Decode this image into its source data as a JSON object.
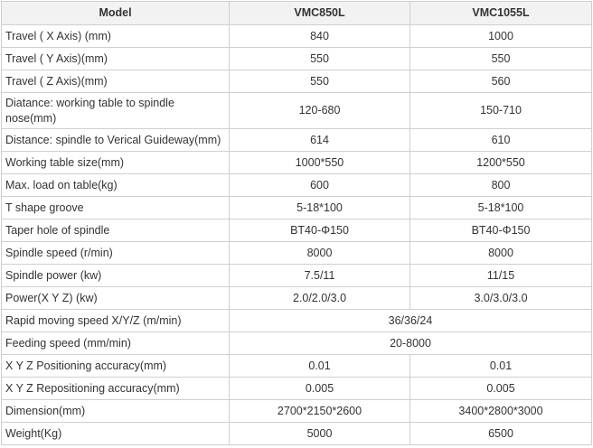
{
  "table": {
    "headers": [
      "Model",
      "VMC850L",
      "VMC1055L"
    ],
    "rows": [
      {
        "label": "Travel ( X Axis) (mm)",
        "a": "840",
        "b": "1000"
      },
      {
        "label": "Travel ( Y Axis)(mm)",
        "a": "550",
        "b": "550"
      },
      {
        "label": "Travel ( Z Axis)(mm)",
        "a": "550",
        "b": "560"
      },
      {
        "label": "Diatance: working table to  spindle nose(mm)",
        "a": "120-680",
        "b": "150-710"
      },
      {
        "label": "Distance: spindle to Verical Guideway(mm)",
        "a": "614",
        "b": "610"
      },
      {
        "label": "Working table size(mm)",
        "a": "1000*550",
        "b": "1200*550"
      },
      {
        "label": "Max. load on table(kg)",
        "a": "600",
        "b": "800"
      },
      {
        "label": "T shape groove",
        "a": "5-18*100",
        "b": "5-18*100"
      },
      {
        "label": "Taper hole of spindle",
        "a": "BT40-Φ150",
        "b": "BT40-Φ150"
      },
      {
        "label": "Spindle speed (r/min)",
        "a": "8000",
        "b": "8000"
      },
      {
        "label": "Spindle power (kw)",
        "a": "7.5/11",
        "b": "11/15"
      },
      {
        "label": "Power(X Y Z) (kw)",
        "a": "2.0/2.0/3.0",
        "b": "3.0/3.0/3.0"
      },
      {
        "label": "Rapid moving speed X/Y/Z (m/min)",
        "merged": "36/36/24"
      },
      {
        "label": "Feeding speed (mm/min)",
        "merged": "20-8000"
      },
      {
        "label": "X Y Z Positioning accuracy(mm)",
        "a": "0.01",
        "b": "0.01"
      },
      {
        "label": "X Y Z Repositioning accuracy(mm)",
        "a": "0.005",
        "b": "0.005"
      },
      {
        "label": "Dimension(mm)",
        "a": "2700*2150*2600",
        "b": "3400*2800*3000"
      },
      {
        "label": "Weight(Kg)",
        "a": "5000",
        "b": "6500"
      }
    ]
  }
}
